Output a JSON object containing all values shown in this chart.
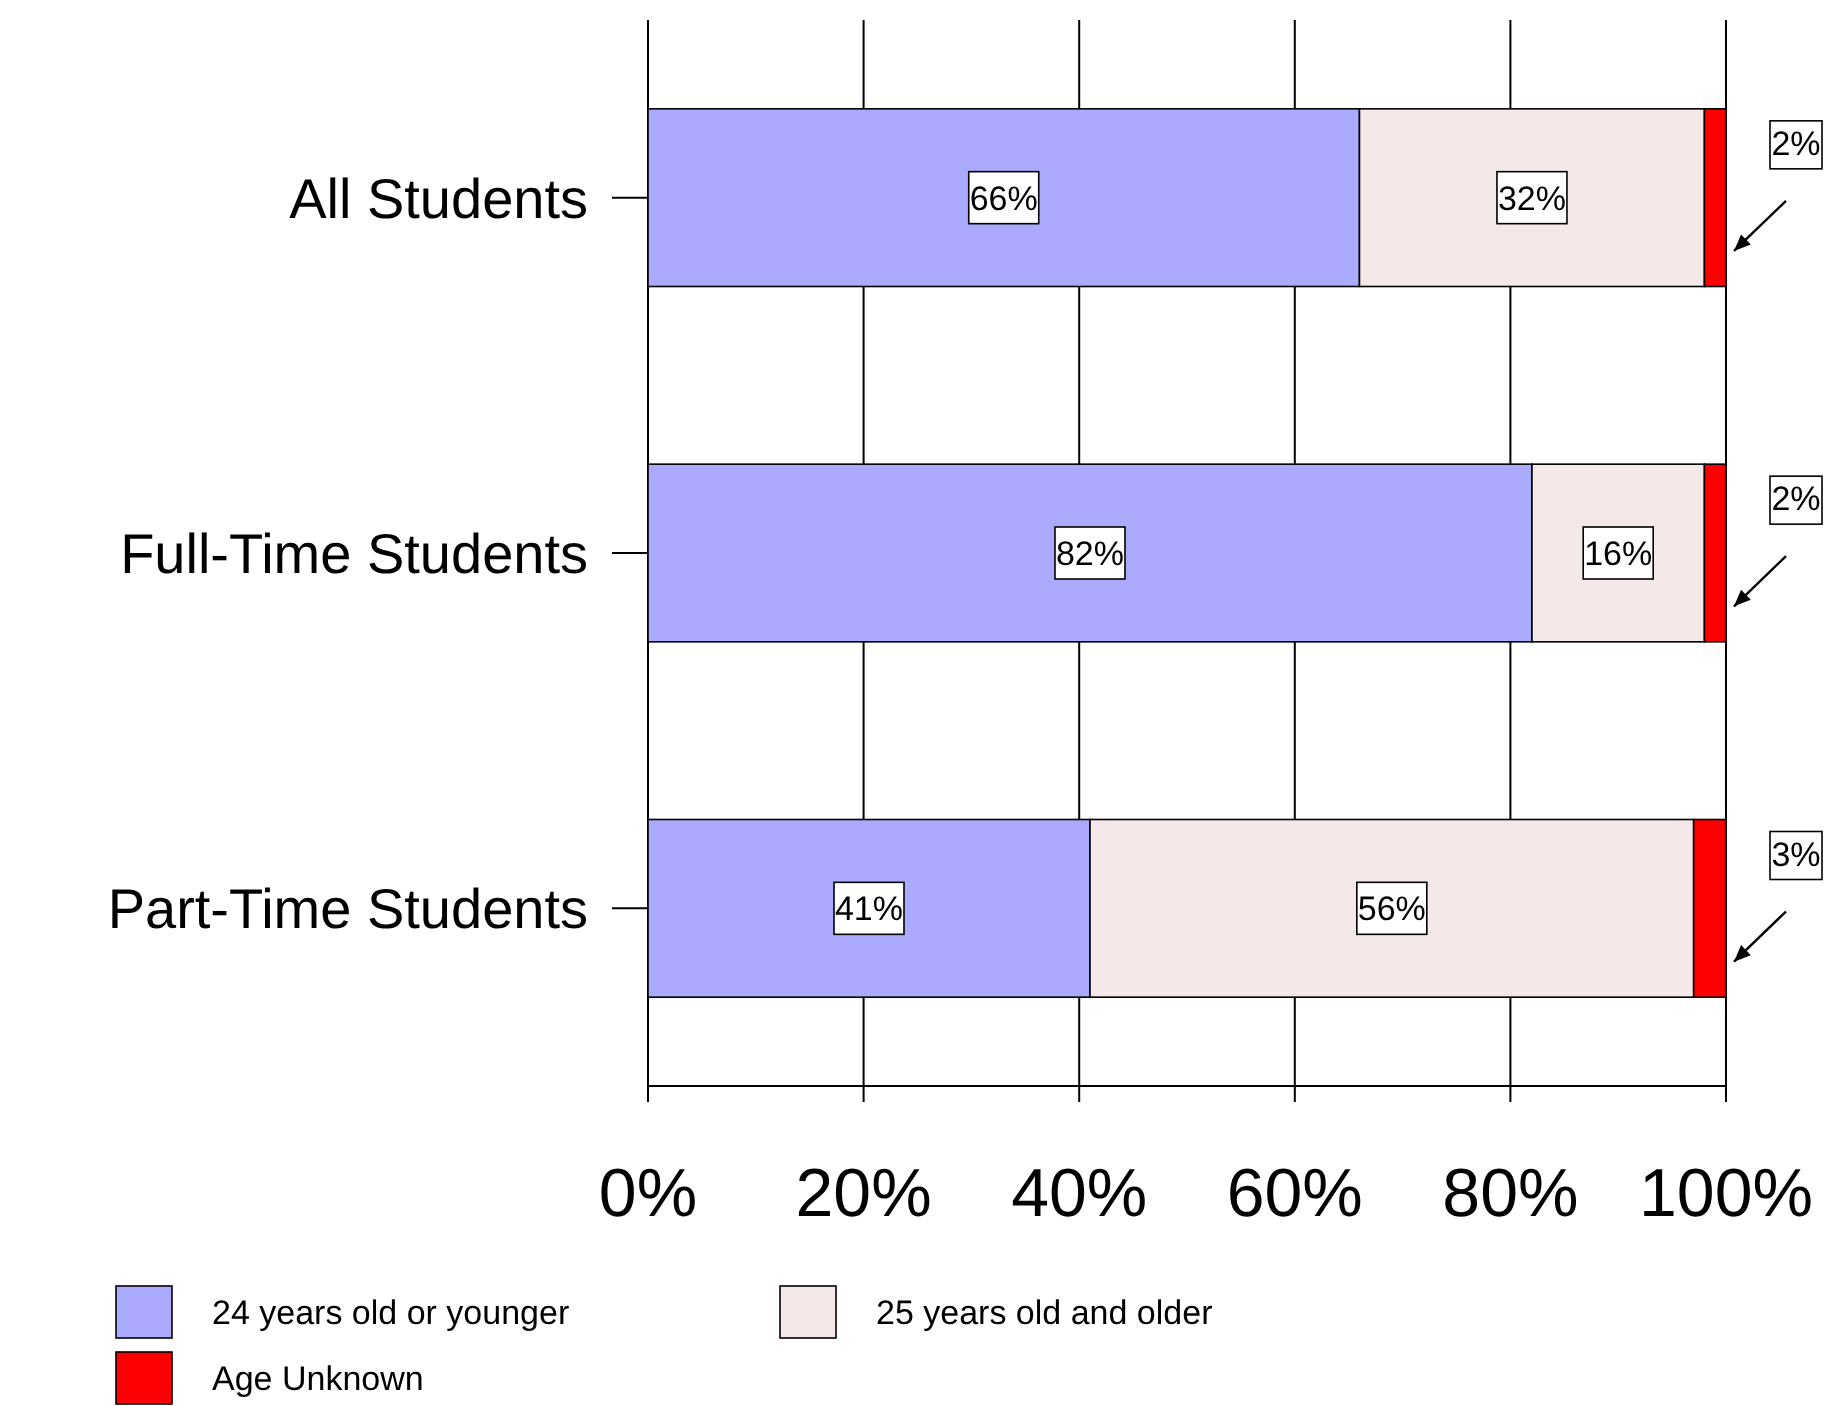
{
  "chart_data": {
    "type": "bar",
    "orientation": "horizontal",
    "stacked": true,
    "categories": [
      "All Students",
      "Full-Time Students",
      "Part-Time Students"
    ],
    "series": [
      {
        "name": "24 years old or younger",
        "color": "#aaaaff",
        "values": [
          66,
          82,
          41
        ]
      },
      {
        "name": "25 years old and older",
        "color": "#f4e8e8",
        "values": [
          32,
          16,
          56
        ]
      },
      {
        "name": "Age Unknown",
        "color": "#ff0000",
        "values": [
          2,
          2,
          3
        ]
      }
    ],
    "xlim": [
      0,
      100
    ],
    "xticks": [
      {
        "value": 0,
        "label": "0%"
      },
      {
        "value": 20,
        "label": "20%"
      },
      {
        "value": 40,
        "label": "40%"
      },
      {
        "value": 60,
        "label": "60%"
      },
      {
        "value": 80,
        "label": "80%"
      },
      {
        "value": 100,
        "label": "100%"
      }
    ],
    "value_labels": [
      [
        "66%",
        "82%",
        "41%"
      ],
      [
        "32%",
        "16%",
        "56%"
      ],
      [
        "2%",
        "2%",
        "3%"
      ]
    ],
    "grid": "x",
    "legend": "bottom"
  }
}
